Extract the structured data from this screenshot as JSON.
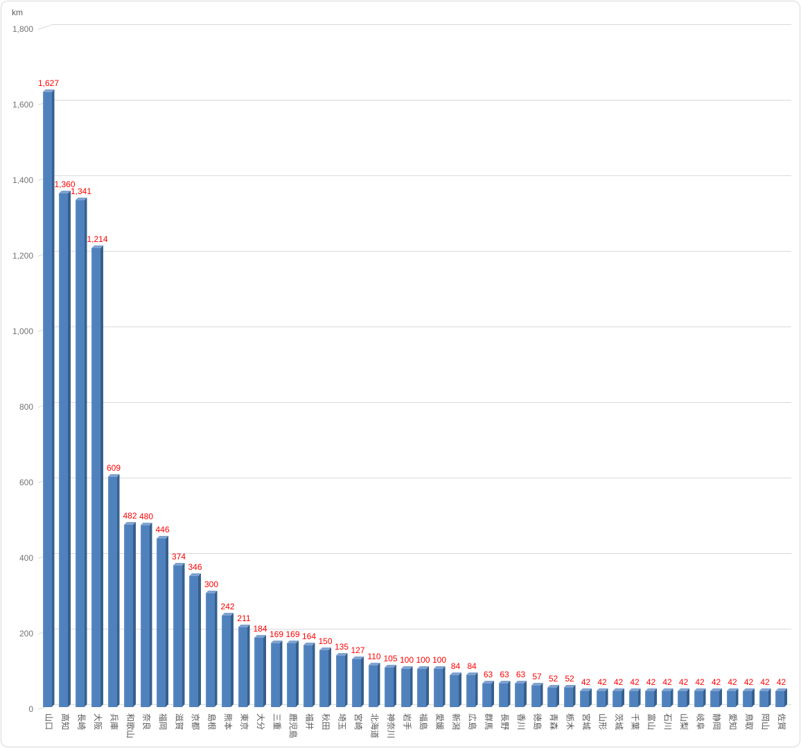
{
  "chart_data": {
    "type": "bar",
    "title": "",
    "unit_label": "km",
    "legend": "none",
    "grid": true,
    "categories": [
      "山口",
      "高知",
      "長崎",
      "大阪",
      "兵庫",
      "和歌山",
      "奈良",
      "福岡",
      "滋賀",
      "京都",
      "島根",
      "熊本",
      "東京",
      "大分",
      "三重",
      "鹿児島",
      "福井",
      "秋田",
      "埼玉",
      "宮崎",
      "北海道",
      "神奈川",
      "岩手",
      "福島",
      "愛媛",
      "新潟",
      "広島",
      "群馬",
      "長野",
      "香川",
      "徳島",
      "青森",
      "栃木",
      "宮城",
      "山形",
      "茨城",
      "千葉",
      "富山",
      "石川",
      "山梨",
      "岐阜",
      "静岡",
      "愛知",
      "鳥取",
      "岡山",
      "佐賀"
    ],
    "values": [
      1627,
      1360,
      1341,
      1214,
      609,
      482,
      480,
      446,
      374,
      346,
      300,
      242,
      211,
      184,
      169,
      169,
      164,
      150,
      135,
      127,
      110,
      105,
      100,
      100,
      100,
      84,
      84,
      63,
      63,
      63,
      57,
      52,
      52,
      42,
      42,
      42,
      42,
      42,
      42,
      42,
      42,
      42,
      42,
      42,
      42,
      42
    ],
    "value_labels": [
      "1,627",
      "1,360",
      "1,341",
      "1,214",
      "609",
      "482",
      "480",
      "446",
      "374",
      "346",
      "300",
      "242",
      "211",
      "184",
      "169",
      "169",
      "164",
      "150",
      "135",
      "127",
      "110",
      "105",
      "100",
      "100",
      "100",
      "84",
      "84",
      "63",
      "63",
      "63",
      "57",
      "52",
      "52",
      "42",
      "42",
      "42",
      "42",
      "42",
      "42",
      "42",
      "42",
      "42",
      "42",
      "42",
      "42",
      "42"
    ],
    "y_axis": {
      "min": 0,
      "max": 1800,
      "step": 200,
      "tick_labels": [
        "0",
        "200",
        "400",
        "600",
        "800",
        "1,000",
        "1,200",
        "1,400",
        "1,600",
        "1,800"
      ]
    },
    "style": {
      "bar_front_color": "#4F81BD",
      "bar_side_color": "#36608E",
      "bar_top_color": "#7FA3D0",
      "bar_edge_highlight": "#6A95C8",
      "value_label_color": "#FF0000",
      "axis_label_color": "#595959",
      "tick_label_color": "#737373",
      "gridline_color": "#D9D9D9",
      "frame_border_color": "#D8D8D8",
      "background_color": "#FFFFFF"
    }
  }
}
